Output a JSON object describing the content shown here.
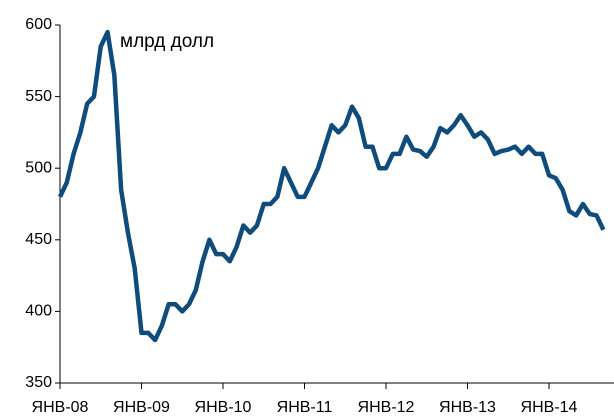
{
  "chart_data": {
    "type": "line",
    "annotation": "млрд долл",
    "categories": [
      "ЯНВ-08",
      null,
      null,
      null,
      null,
      null,
      null,
      null,
      null,
      null,
      null,
      null,
      "ЯНВ-09",
      null,
      null,
      null,
      null,
      null,
      null,
      null,
      null,
      null,
      null,
      null,
      "ЯНВ-10",
      null,
      null,
      null,
      null,
      null,
      null,
      null,
      null,
      null,
      null,
      null,
      "ЯНВ-11",
      null,
      null,
      null,
      null,
      null,
      null,
      null,
      null,
      null,
      null,
      null,
      "ЯНВ-12",
      null,
      null,
      null,
      null,
      null,
      null,
      null,
      null,
      null,
      null,
      null,
      "ЯНВ-13",
      null,
      null,
      null,
      null,
      null,
      null,
      null,
      null,
      null,
      null,
      null,
      "ЯНВ-14",
      null,
      null,
      null,
      null,
      null,
      null,
      null,
      null
    ],
    "series": [
      {
        "color": "#0f4c7c",
        "values": [
          480,
          490,
          510,
          525,
          545,
          550,
          585,
          595,
          565,
          485,
          455,
          430,
          385,
          385,
          380,
          390,
          405,
          405,
          400,
          405,
          415,
          435,
          450,
          440,
          440,
          435,
          445,
          460,
          455,
          460,
          475,
          475,
          480,
          500,
          490,
          480,
          480,
          490,
          500,
          515,
          530,
          525,
          530,
          543,
          535,
          515,
          515,
          500,
          500,
          510,
          510,
          522,
          513,
          512,
          508,
          515,
          528,
          525,
          530,
          537,
          530,
          522,
          525,
          520,
          510,
          512,
          513,
          515,
          510,
          515,
          510,
          510,
          495,
          493,
          485,
          470,
          467,
          475,
          468,
          467,
          457
        ]
      }
    ],
    "ylim": [
      350,
      600
    ],
    "yticks": [
      350,
      400,
      450,
      500,
      550,
      600
    ]
  }
}
